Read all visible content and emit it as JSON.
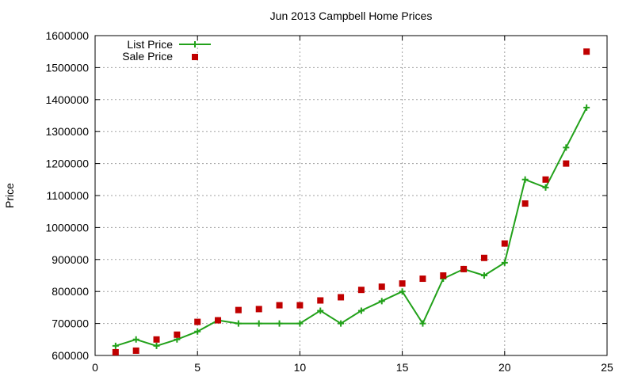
{
  "chart_data": {
    "type": "line",
    "title": "Jun 2013 Campbell Home Prices",
    "xlabel": "",
    "ylabel": "Price",
    "xlim": [
      0,
      25
    ],
    "ylim": [
      600000,
      1600000
    ],
    "x_ticks": [
      0,
      5,
      10,
      15,
      20,
      25
    ],
    "y_ticks": [
      600000,
      700000,
      800000,
      900000,
      1000000,
      1100000,
      1200000,
      1300000,
      1400000,
      1500000,
      1600000
    ],
    "grid": true,
    "legend_position": "top-left",
    "series": [
      {
        "name": "List Price",
        "style": "line-with-plus-markers",
        "color": "#22a11a",
        "x": [
          1,
          2,
          3,
          4,
          5,
          6,
          7,
          8,
          9,
          10,
          11,
          12,
          13,
          14,
          15,
          16,
          17,
          18,
          19,
          20,
          21,
          22,
          23,
          24
        ],
        "values": [
          630000,
          650000,
          630000,
          650000,
          675000,
          710000,
          700000,
          700000,
          700000,
          700000,
          740000,
          700000,
          740000,
          770000,
          800000,
          700000,
          840000,
          870000,
          850000,
          890000,
          1150000,
          1125000,
          1250000,
          1375000
        ]
      },
      {
        "name": "Sale Price",
        "style": "square-markers",
        "color": "#c00000",
        "x": [
          1,
          2,
          3,
          4,
          5,
          6,
          7,
          8,
          9,
          10,
          11,
          12,
          13,
          14,
          15,
          16,
          17,
          18,
          19,
          20,
          21,
          22,
          23,
          24
        ],
        "values": [
          610000,
          615000,
          650000,
          665000,
          705000,
          710000,
          742000,
          745000,
          757000,
          757000,
          772000,
          782000,
          805000,
          815000,
          825000,
          840000,
          850000,
          870000,
          905000,
          950000,
          1075000,
          1150000,
          1200000,
          1550000
        ]
      }
    ]
  }
}
